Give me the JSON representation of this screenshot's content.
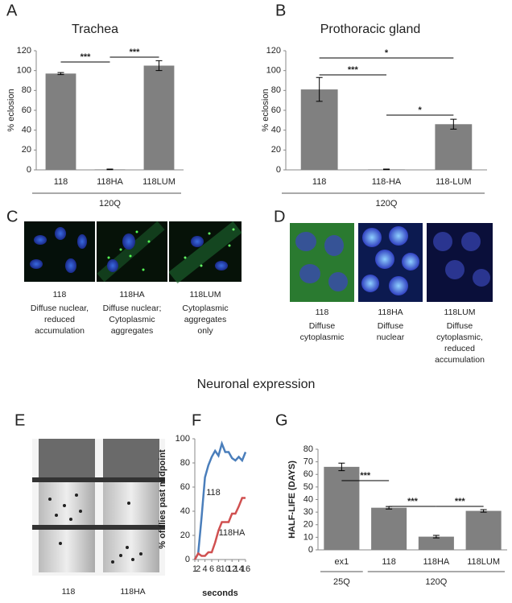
{
  "figure": {
    "panel_letters": [
      "A",
      "B",
      "C",
      "D",
      "E",
      "F",
      "G"
    ],
    "section_title": "Neuronal expression",
    "c_labels": [
      {
        "name": "118",
        "description": [
          "Diffuse nuclear,",
          "reduced",
          "accumulation"
        ]
      },
      {
        "name": "118HA",
        "description": [
          "Diffuse nuclear;",
          "Cytoplasmic",
          "aggregates"
        ]
      },
      {
        "name": "118LUM",
        "description": [
          "Cytoplasmic",
          "aggregates",
          "only"
        ]
      }
    ],
    "d_labels": [
      {
        "name": "118",
        "description": [
          "Diffuse",
          "cytoplasmic"
        ]
      },
      {
        "name": "118HA",
        "description": [
          "Diffuse",
          "nuclear"
        ]
      },
      {
        "name": "118LUM",
        "description": [
          "Diffuse",
          "cytoplasmic,",
          "reduced",
          "accumulation"
        ]
      }
    ],
    "e_labels": [
      "118",
      "118HA"
    ]
  },
  "chart_data": [
    {
      "type": "bar",
      "title": "Trachea",
      "ylabel": "% eclosion",
      "color": "#808080",
      "categories": [
        "118",
        "118HA",
        "118LUM"
      ],
      "values": [
        97,
        0.5,
        105
      ],
      "errors": [
        1,
        0.3,
        5
      ],
      "ylim": [
        0,
        120
      ],
      "yticks": [
        0,
        20,
        40,
        60,
        80,
        100,
        120
      ],
      "groups": [
        {
          "label": "120Q",
          "span": [
            0,
            2
          ]
        }
      ],
      "significance": [
        {
          "label": "***",
          "pair": [
            0,
            1
          ]
        },
        {
          "label": "***",
          "pair": [
            1,
            2
          ]
        }
      ]
    },
    {
      "type": "bar",
      "title": "Prothoracic gland",
      "ylabel": "% eclosion",
      "color": "#808080",
      "categories": [
        "118",
        "118-HA",
        "118-LUM"
      ],
      "values": [
        81,
        0.5,
        46
      ],
      "errors": [
        12,
        0.3,
        5
      ],
      "ylim": [
        0,
        120
      ],
      "yticks": [
        0,
        20,
        40,
        60,
        80,
        100,
        120
      ],
      "groups": [
        {
          "label": "120Q",
          "span": [
            0,
            2
          ]
        }
      ],
      "significance": [
        {
          "label": "***",
          "pair": [
            0,
            1
          ]
        },
        {
          "label": "*",
          "pair": [
            0,
            2
          ]
        },
        {
          "label": "*",
          "pair": [
            1,
            2
          ]
        }
      ]
    },
    {
      "type": "line",
      "ylabel": "% of flies past midpoint",
      "xlabel": "seconds",
      "x": [
        1,
        2,
        3,
        4,
        5,
        6,
        7,
        8,
        9,
        10,
        11,
        12,
        13,
        14,
        15,
        16
      ],
      "series": [
        {
          "name": "118",
          "color": "#4a7ebb",
          "values": [
            0,
            5,
            35,
            68,
            78,
            85,
            90,
            86,
            96,
            89,
            89,
            84,
            82,
            85,
            82,
            89
          ]
        },
        {
          "name": "118HA",
          "color": "#d05050",
          "values": [
            0,
            5,
            3,
            3,
            6,
            6,
            14,
            24,
            31,
            31,
            31,
            38,
            38,
            44,
            51,
            51
          ]
        }
      ],
      "xlim": [
        1,
        16
      ],
      "xticks": [
        1,
        2,
        4,
        6,
        8,
        10,
        12,
        14,
        16
      ],
      "ylim": [
        0,
        100
      ],
      "yticks": [
        0,
        20,
        40,
        60,
        80,
        100
      ]
    },
    {
      "type": "bar",
      "ylabel": "HALF-LIFE (DAYS)",
      "color": "#808080",
      "categories": [
        "ex1",
        "118",
        "118HA",
        "118LUM"
      ],
      "values": [
        66,
        33.5,
        10.5,
        31
      ],
      "errors": [
        3,
        1,
        1,
        1
      ],
      "ylim": [
        0,
        80
      ],
      "yticks": [
        0,
        10,
        20,
        30,
        40,
        50,
        60,
        70,
        80
      ],
      "groups": [
        {
          "label": "25Q",
          "span": [
            0,
            0
          ]
        },
        {
          "label": "120Q",
          "span": [
            1,
            3
          ]
        }
      ],
      "significance": [
        {
          "label": "***",
          "pair": [
            0,
            1
          ]
        },
        {
          "label": "***",
          "pair": [
            1,
            2
          ]
        },
        {
          "label": "***",
          "pair": [
            2,
            3
          ]
        }
      ]
    }
  ]
}
